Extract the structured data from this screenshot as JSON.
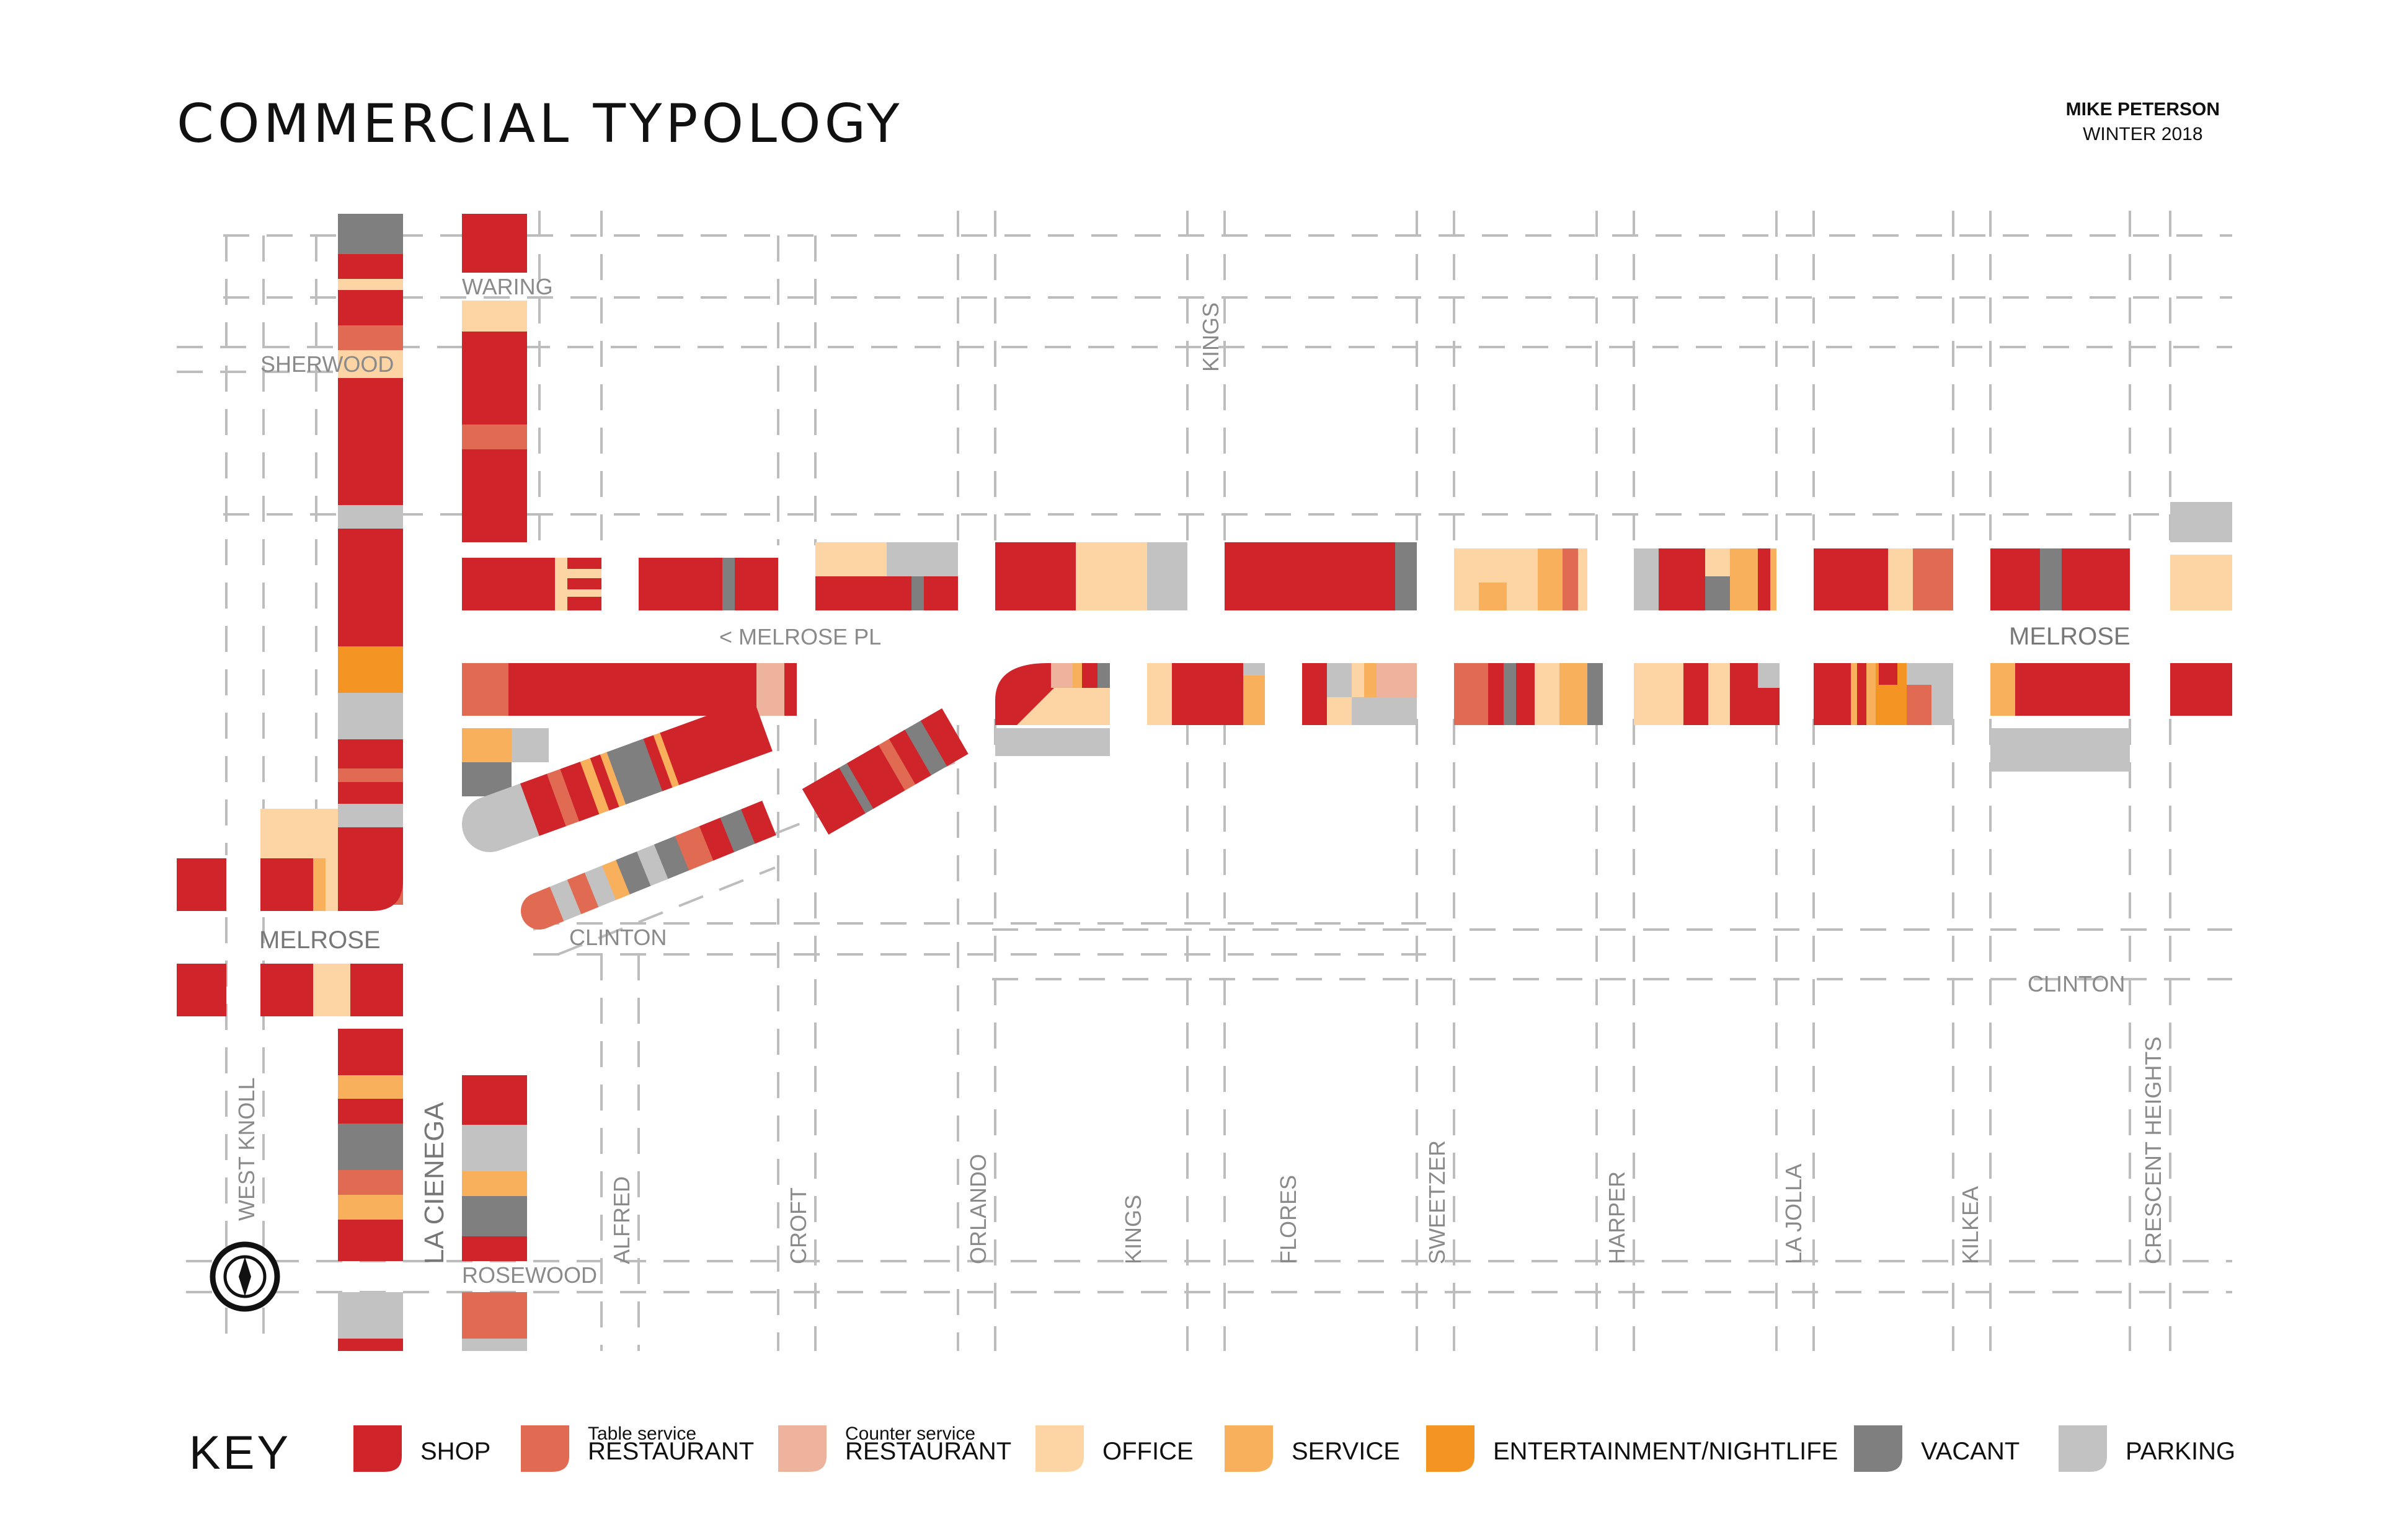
{
  "header": {
    "title": "COMMERCIAL TYPOLOGY",
    "author": "MIKE PETERSON",
    "term": "WINTER 2018"
  },
  "colors": {
    "shop": "#d0242b",
    "table_restaurant": "#e06b52",
    "counter_restaurant": "#eeb39d",
    "office": "#fdd5a4",
    "service": "#f9b05d",
    "entertainment": "#f49422",
    "vacant": "#7f7f7f",
    "parking": "#c2c2c2",
    "street_line": "#bdbdbd",
    "street_label": "#8a8a8a"
  },
  "streets": {
    "waring": "WARING",
    "sherwood": "SHERWOOD",
    "kings_north": "KINGS",
    "melrose_pl": "< MELROSE PL",
    "melrose_east": "MELROSE",
    "melrose_west": "MELROSE",
    "clinton_west": "CLINTON",
    "clinton_east": "CLINTON",
    "west_knoll": "WEST KNOLL",
    "la_cienega": "LA CIENEGA",
    "rosewood": "ROSEWOOD",
    "alfred": "ALFRED",
    "croft": "CROFT",
    "orlando": "ORLANDO",
    "kings_south": "KINGS",
    "flores": "FLORES",
    "sweetzer": "SWEETZER",
    "harper": "HARPER",
    "la_jolla": "LA JOLLA",
    "kilkea": "KILKEA",
    "crescent_heights": "CRESCENT HEIGHTS"
  },
  "compass": {
    "icon": "compass-north-icon"
  },
  "legend": {
    "title": "KEY",
    "items": [
      {
        "key": "shop",
        "label": "SHOP",
        "sublabel": ""
      },
      {
        "key": "table_restaurant",
        "label": "RESTAURANT",
        "sublabel": "Table service"
      },
      {
        "key": "counter_restaurant",
        "label": "RESTAURANT",
        "sublabel": "Counter service"
      },
      {
        "key": "office",
        "label": "OFFICE",
        "sublabel": ""
      },
      {
        "key": "service",
        "label": "SERVICE",
        "sublabel": ""
      },
      {
        "key": "entertainment",
        "label": "ENTERTAINMENT/NIGHTLIFE",
        "sublabel": ""
      },
      {
        "key": "vacant",
        "label": "VACANT",
        "sublabel": ""
      },
      {
        "key": "parking",
        "label": "PARKING",
        "sublabel": ""
      }
    ]
  }
}
